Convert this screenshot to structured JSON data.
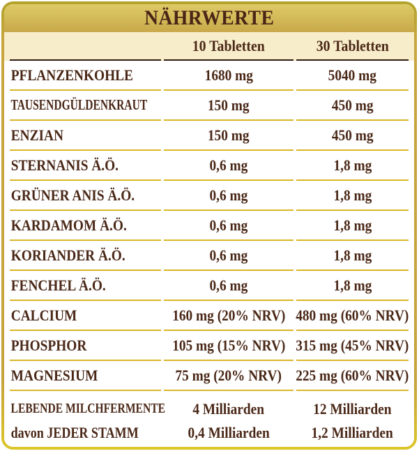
{
  "title": "NÄHRWERTE",
  "columns": [
    "10 Tabletten",
    "30 Tabletten"
  ],
  "rows": [
    {
      "label": "PFLANZENKOHLE",
      "v10": "1680 mg",
      "v30": "5040 mg"
    },
    {
      "label": "TAUSENDGÜLDENKRAUT",
      "v10": "150 mg",
      "v30": "450 mg"
    },
    {
      "label": "ENZIAN",
      "v10": "150 mg",
      "v30": "450 mg"
    },
    {
      "label": "STERNANIS Ä.Ö.",
      "v10": "0,6 mg",
      "v30": "1,8 mg"
    },
    {
      "label": "GRÜNER ANIS Ä.Ö.",
      "v10": "0,6 mg",
      "v30": "1,8 mg"
    },
    {
      "label": "KARDAMOM Ä.Ö.",
      "v10": "0,6 mg",
      "v30": "1,8 mg"
    },
    {
      "label": "KORIANDER Ä.Ö.",
      "v10": "0,6 mg",
      "v30": "1,8 mg"
    },
    {
      "label": "FENCHEL Ä.Ö.",
      "v10": "0,6 mg",
      "v30": "1,8 mg"
    },
    {
      "label": "CALCIUM",
      "v10": "160 mg (20% NRV)",
      "v30": "480 mg (60% NRV)"
    },
    {
      "label": "PHOSPHOR",
      "v10": "105 mg (15% NRV)",
      "v30": "315 mg (45% NRV)"
    },
    {
      "label": "MAGNESIUM",
      "v10": "75 mg (20% NRV)",
      "v30": "225 mg (60% NRV)"
    }
  ],
  "footer_rows": [
    {
      "label": "LEBENDE MILCHFERMENTE",
      "v10": "4 Milliarden",
      "v30": "12 Milliarden"
    },
    {
      "label": "davon JEDER STAMM",
      "v10": "0,4 Milliarden",
      "v30": "1,2 Milliarden"
    }
  ],
  "colors": {
    "border_gold": "#c7a33d",
    "header_gradient_top": "#ddca67",
    "header_gradient_bottom": "#c8a84a",
    "subheader_cream": "#f8edca",
    "dark_rule": "#2e1c10",
    "separator_gold": "#d9b625",
    "text_brown": "#4a2817",
    "background": "#ffffff"
  }
}
